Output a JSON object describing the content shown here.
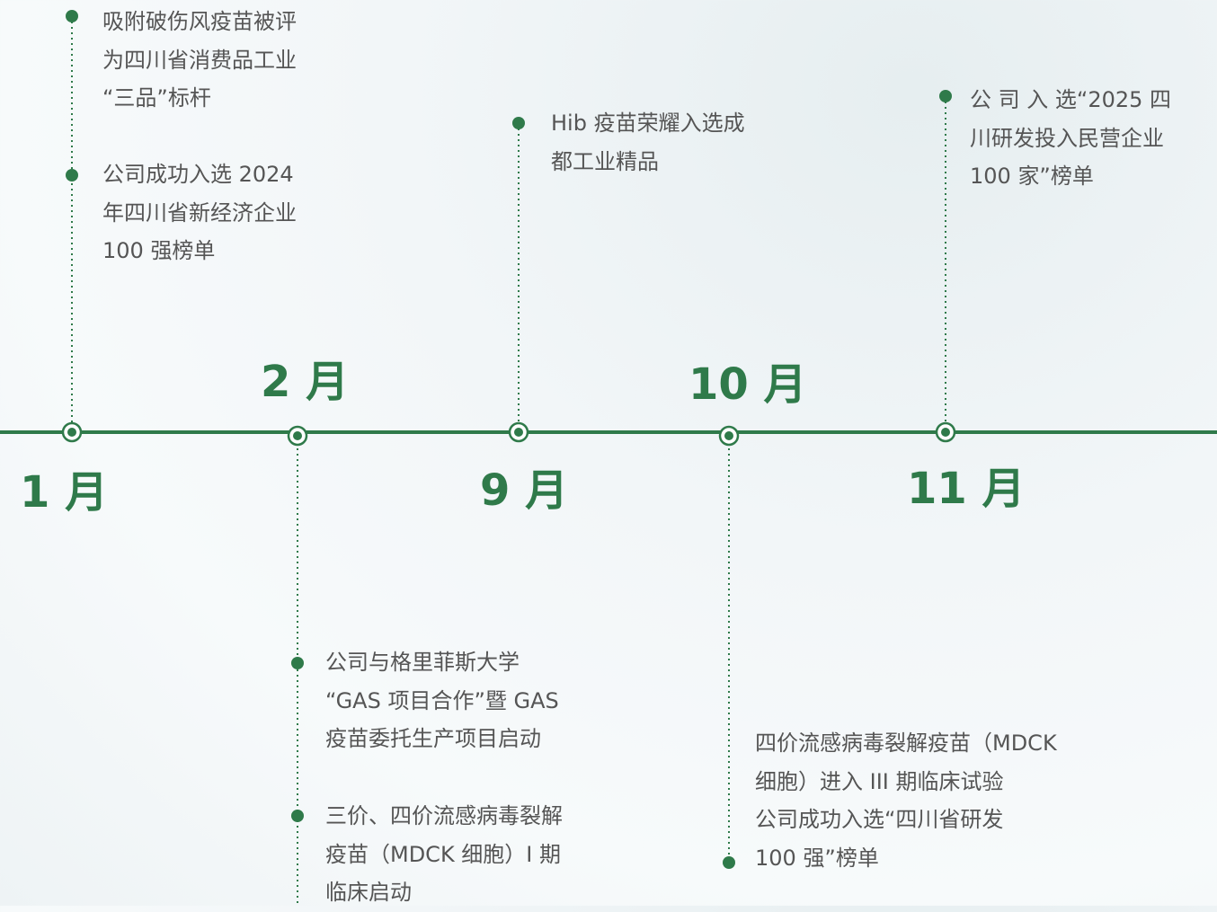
{
  "timeline": [
    {
      "month": "1 月",
      "events": [
        {
          "lines": [
            "吸附破伤风疫苗被评",
            "为四川省消费品工业",
            "“三品”标杆"
          ]
        },
        {
          "lines": [
            "公司成功入选 2024",
            "年四川省新经济企业",
            "100 强榜单"
          ]
        }
      ]
    },
    {
      "month": "2 月",
      "events": [
        {
          "lines": [
            "公司与格里菲斯大学",
            "“GAS 项目合作”暨 GAS",
            "疫苗委托生产项目启动"
          ]
        },
        {
          "lines": [
            "三价、四价流感病毒裂解",
            "疫苗（MDCK 细胞）I 期",
            "临床启动"
          ]
        }
      ]
    },
    {
      "month": "9 月",
      "events": [
        {
          "lines": [
            "Hib 疫苗荣耀入选成",
            "都工业精品"
          ]
        }
      ]
    },
    {
      "month": "10 月",
      "events": [
        {
          "lines": [
            "四价流感病毒裂解疫苗（MDCK",
            "细胞）进入 III 期临床试验",
            "公司成功入选“四川省研发",
            "100 强”榜单"
          ]
        }
      ]
    },
    {
      "month": "11 月",
      "events": [
        {
          "lines": [
            "公 司 入 选“2025 四",
            "川研发投入民营企业",
            "100 家”榜单"
          ]
        }
      ]
    }
  ]
}
